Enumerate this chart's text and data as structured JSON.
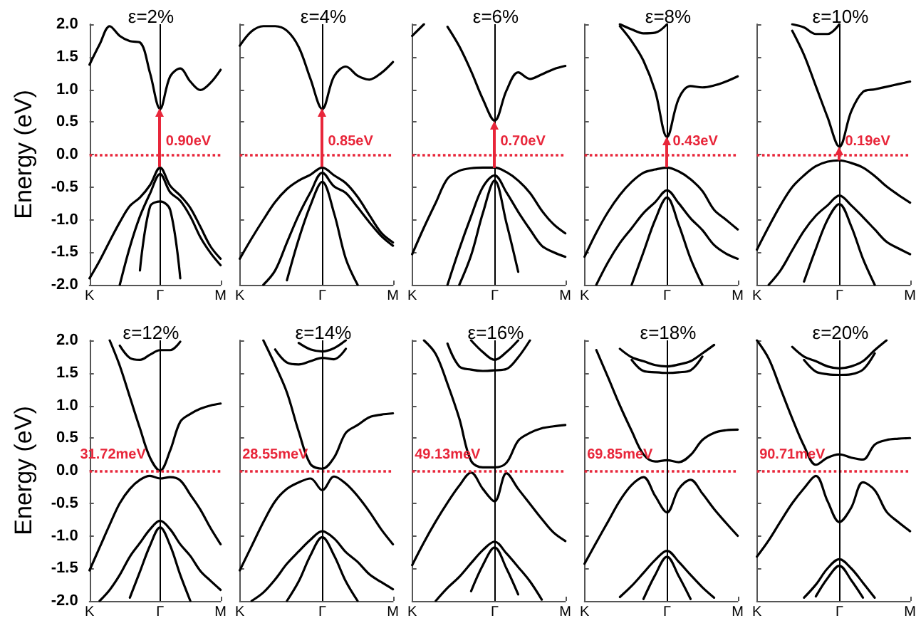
{
  "chart_data": [
    {
      "type": "line",
      "title": "ε=2%",
      "ylabel": "Energy (eV)",
      "categories": [
        "K",
        null,
        null,
        null,
        null,
        null,
        null,
        "Γ",
        null,
        null,
        null,
        null,
        null,
        "M"
      ],
      "ylim": [
        -2,
        2
      ],
      "yticks": [
        {
          "value": -2,
          "label": "-2.0"
        },
        {
          "value": -1.5,
          "label": "-1.5"
        },
        {
          "value": -1,
          "label": "-1.0"
        },
        {
          "value": -0.5,
          "label": "-0.5"
        },
        {
          "value": 0,
          "label": "0.0"
        },
        {
          "value": 0.5,
          "label": "0.5"
        },
        {
          "value": 1,
          "label": "1.0"
        },
        {
          "value": 1.5,
          "label": "1.5"
        },
        {
          "value": 2,
          "label": "2.0"
        }
      ],
      "grid": false,
      "ref_lines": [
        {
          "axis": "y",
          "value": 0,
          "color": "#e8263a",
          "line_style": "dotted"
        },
        {
          "axis": "x",
          "value": "Γ",
          "color": "#000000",
          "line_style": "solid"
        }
      ],
      "annotations": [
        {
          "text": "0.90eV",
          "x": "Γ",
          "y": 0.2
        }
      ],
      "series": [
        {
          "color": "#000000",
          "values": [
            1.38,
            1.69,
            1.97,
            1.82,
            1.74,
            1.72,
            1.25,
            0.7,
            1.2,
            1.32,
            1.12,
            0.99,
            1.1,
            1.3
          ]
        },
        {
          "color": "#000000",
          "values": [
            -1.9,
            -1.63,
            -1.33,
            -1.04,
            -0.79,
            -0.66,
            -0.47,
            -0.2,
            -0.48,
            -0.63,
            -0.82,
            -1.11,
            -1.41,
            -1.6
          ]
        },
        {
          "color": "#000000",
          "values": [
            null,
            null,
            null,
            -2,
            -1.42,
            -0.95,
            -0.6,
            -0.3,
            -0.58,
            -0.71,
            -0.95,
            -1.27,
            -1.51,
            -1.7
          ]
        },
        {
          "color": "#000000",
          "values": [
            null,
            null,
            null,
            null,
            null,
            -1.78,
            -0.8,
            -0.72,
            -0.85,
            -1.9,
            null,
            null,
            null,
            null
          ]
        }
      ]
    },
    {
      "type": "line",
      "title": "ε=4%",
      "categories": [
        "K",
        null,
        null,
        null,
        null,
        null,
        null,
        "Γ",
        null,
        null,
        null,
        null,
        null,
        "M"
      ],
      "ylim": [
        -2,
        2
      ],
      "tick_labels": "x",
      "yticks": [
        {
          "value": -2,
          "label": null
        },
        {
          "value": -1.5,
          "label": null
        },
        {
          "value": -1,
          "label": null
        },
        {
          "value": -0.5,
          "label": null
        },
        {
          "value": 0,
          "label": null
        },
        {
          "value": 0.5,
          "label": null
        },
        {
          "value": 1,
          "label": null
        },
        {
          "value": 1.5,
          "label": null
        },
        {
          "value": 2,
          "label": null
        }
      ],
      "grid": false,
      "ref_lines": [
        {
          "axis": "y",
          "value": 0,
          "color": "#e8263a",
          "line_style": "dotted"
        },
        {
          "axis": "x",
          "value": "Γ",
          "color": "#000000",
          "line_style": "solid"
        }
      ],
      "annotations": [
        {
          "text": "0.85eV",
          "x": "Γ",
          "y": 0.2
        }
      ],
      "series": [
        {
          "color": "#000000",
          "values": [
            1.67,
            1.89,
            1.97,
            1.97,
            1.9,
            1.65,
            1.16,
            0.7,
            1.2,
            1.35,
            1.21,
            1.15,
            1.25,
            1.42
          ]
        },
        {
          "color": "#000000",
          "values": [
            -1.6,
            -1.29,
            -1.0,
            -0.73,
            -0.53,
            -0.4,
            -0.31,
            -0.2,
            -0.32,
            -0.44,
            -0.65,
            -0.93,
            -1.2,
            -1.35
          ]
        },
        {
          "color": "#000000",
          "values": [
            null,
            null,
            -2,
            -1.78,
            -1.35,
            -0.93,
            -0.58,
            -0.28,
            -0.49,
            -0.59,
            -0.81,
            -1.04,
            -1.25,
            -1.4
          ]
        },
        {
          "color": "#000000",
          "values": [
            null,
            null,
            null,
            null,
            -1.93,
            -1.3,
            -0.78,
            -0.42,
            -0.9,
            -1.6,
            -2,
            null,
            null,
            null
          ]
        }
      ]
    },
    {
      "type": "line",
      "title": "ε=6%",
      "categories": [
        "K",
        null,
        null,
        null,
        null,
        null,
        null,
        "Γ",
        null,
        null,
        null,
        null,
        null,
        "M"
      ],
      "ylim": [
        -2,
        2
      ],
      "tick_labels": "x",
      "yticks": [
        {
          "value": -2,
          "label": null
        },
        {
          "value": -1.5,
          "label": null
        },
        {
          "value": -1,
          "label": null
        },
        {
          "value": -0.5,
          "label": null
        },
        {
          "value": 0,
          "label": null
        },
        {
          "value": 0.5,
          "label": null
        },
        {
          "value": 1,
          "label": null
        },
        {
          "value": 1.5,
          "label": null
        },
        {
          "value": 2,
          "label": null
        }
      ],
      "grid": false,
      "ref_lines": [
        {
          "axis": "y",
          "value": 0,
          "color": "#e8263a",
          "line_style": "dotted"
        },
        {
          "axis": "x",
          "value": "Γ",
          "color": "#000000",
          "line_style": "solid"
        }
      ],
      "annotations": [
        {
          "text": "0.70eV",
          "x": "Γ",
          "y": 0.2
        }
      ],
      "series": [
        {
          "color": "#000000",
          "values": [
            1.82,
            2.0,
            null,
            null,
            null,
            null,
            null,
            null,
            null,
            null,
            null,
            null,
            null,
            null
          ]
        },
        {
          "color": "#000000",
          "values": [
            null,
            null,
            null,
            1.96,
            1.66,
            1.28,
            0.85,
            0.52,
            0.98,
            1.26,
            1.16,
            1.23,
            1.31,
            1.36
          ]
        },
        {
          "color": "#000000",
          "values": [
            -1.53,
            -1.12,
            -0.74,
            -0.37,
            -0.25,
            -0.21,
            -0.2,
            -0.2,
            -0.27,
            -0.4,
            -0.59,
            -0.86,
            -1.07,
            -1.21
          ]
        },
        {
          "color": "#000000",
          "values": [
            null,
            null,
            null,
            -2,
            -1.45,
            -0.95,
            -0.5,
            -0.32,
            -0.58,
            -0.88,
            -1.15,
            -1.4,
            -1.5,
            -1.57
          ]
        },
        {
          "color": "#000000",
          "values": [
            null,
            null,
            null,
            null,
            -2,
            -1.55,
            -0.9,
            -0.4,
            -1.05,
            -1.8,
            null,
            null,
            null,
            null
          ]
        }
      ]
    },
    {
      "type": "line",
      "title": "ε=8%",
      "categories": [
        "K",
        null,
        null,
        null,
        null,
        null,
        null,
        "Γ",
        null,
        null,
        null,
        null,
        null,
        "M"
      ],
      "ylim": [
        -2,
        2
      ],
      "tick_labels": "x",
      "yticks": [
        {
          "value": -2,
          "label": null
        },
        {
          "value": -1.5,
          "label": null
        },
        {
          "value": -1,
          "label": null
        },
        {
          "value": -0.5,
          "label": null
        },
        {
          "value": 0,
          "label": null
        },
        {
          "value": 0.5,
          "label": null
        },
        {
          "value": 1,
          "label": null
        },
        {
          "value": 1.5,
          "label": null
        },
        {
          "value": 2,
          "label": null
        }
      ],
      "grid": false,
      "ref_lines": [
        {
          "axis": "y",
          "value": 0,
          "color": "#e8263a",
          "line_style": "dotted"
        },
        {
          "axis": "x",
          "value": "Γ",
          "color": "#000000",
          "line_style": "solid"
        }
      ],
      "annotations": [
        {
          "text": "0.43eV",
          "x": "Γ",
          "y": 0.2
        }
      ],
      "series": [
        {
          "color": "#000000",
          "values": [
            null,
            null,
            null,
            1.97,
            1.74,
            1.44,
            0.97,
            0.27,
            0.86,
            1.05,
            1.03,
            1.06,
            1.12,
            1.2
          ]
        },
        {
          "color": "#000000",
          "values": [
            null,
            null,
            null,
            2.0,
            1.92,
            1.86,
            1.87,
            2.0,
            null,
            null,
            null,
            null,
            null,
            null
          ]
        },
        {
          "color": "#000000",
          "values": [
            -1.57,
            -1.2,
            -0.88,
            -0.62,
            -0.42,
            -0.28,
            -0.23,
            -0.2,
            -0.26,
            -0.38,
            -0.56,
            -0.85,
            -1.0,
            -1.15
          ]
        },
        {
          "color": "#000000",
          "values": [
            null,
            -2,
            -1.65,
            -1.36,
            -1.13,
            -0.9,
            -0.73,
            -0.55,
            -0.75,
            -0.98,
            -1.16,
            -1.39,
            -1.52,
            -1.6
          ]
        },
        {
          "color": "#000000",
          "values": [
            null,
            null,
            null,
            null,
            -2,
            -1.5,
            -1.0,
            -0.66,
            -1.08,
            -1.6,
            -2,
            null,
            null,
            null
          ]
        }
      ]
    },
    {
      "type": "line",
      "title": "ε=10%",
      "categories": [
        "K",
        null,
        null,
        null,
        null,
        null,
        null,
        "Γ",
        null,
        null,
        null,
        null,
        null,
        "M"
      ],
      "ylim": [
        -2,
        2
      ],
      "tick_labels": "x",
      "yticks": [
        {
          "value": -2,
          "label": null
        },
        {
          "value": -1.5,
          "label": null
        },
        {
          "value": -1,
          "label": null
        },
        {
          "value": -0.5,
          "label": null
        },
        {
          "value": 0,
          "label": null
        },
        {
          "value": 0.5,
          "label": null
        },
        {
          "value": 1,
          "label": null
        },
        {
          "value": 1.5,
          "label": null
        },
        {
          "value": 2,
          "label": null
        }
      ],
      "grid": false,
      "ref_lines": [
        {
          "axis": "y",
          "value": 0,
          "color": "#e8263a",
          "line_style": "dotted"
        },
        {
          "axis": "x",
          "value": "Γ",
          "color": "#000000",
          "line_style": "solid"
        }
      ],
      "annotations": [
        {
          "text": "0.19eV",
          "x": "Γ",
          "y": 0.2
        }
      ],
      "series": [
        {
          "color": "#000000",
          "values": [
            null,
            null,
            null,
            1.9,
            1.53,
            1.05,
            0.57,
            0.12,
            0.66,
            0.96,
            1.0,
            1.04,
            1.08,
            1.12
          ]
        },
        {
          "color": "#000000",
          "values": [
            null,
            null,
            null,
            2.0,
            1.95,
            1.85,
            1.85,
            2.0,
            null,
            null,
            null,
            null,
            null,
            null
          ]
        },
        {
          "color": "#000000",
          "values": [
            -1.46,
            -1.11,
            -0.78,
            -0.5,
            -0.32,
            -0.18,
            -0.11,
            -0.09,
            -0.13,
            -0.2,
            -0.33,
            -0.49,
            -0.62,
            -0.74
          ]
        },
        {
          "color": "#000000",
          "values": [
            null,
            -2,
            -1.78,
            -1.47,
            -1.17,
            -0.94,
            -0.78,
            -0.63,
            -0.78,
            -0.96,
            -1.15,
            -1.34,
            -1.44,
            -1.53
          ]
        },
        {
          "color": "#000000",
          "values": [
            null,
            null,
            null,
            null,
            -1.95,
            -1.45,
            -1.0,
            -0.76,
            -1.1,
            -1.6,
            -2,
            null,
            null,
            null
          ]
        }
      ]
    },
    {
      "type": "line",
      "title": "ε=12%",
      "ylabel": "Energy (eV)",
      "categories": [
        "K",
        null,
        null,
        null,
        null,
        null,
        null,
        "Γ",
        null,
        null,
        null,
        null,
        null,
        "M"
      ],
      "ylim": [
        -2,
        2
      ],
      "yticks": [
        {
          "value": -2,
          "label": "-2.0"
        },
        {
          "value": -1.5,
          "label": "-1.5"
        },
        {
          "value": -1,
          "label": "-1.0"
        },
        {
          "value": -0.5,
          "label": "-0.5"
        },
        {
          "value": 0,
          "label": "0.0"
        },
        {
          "value": 0.5,
          "label": "0.5"
        },
        {
          "value": 1,
          "label": "1.0"
        },
        {
          "value": 1.5,
          "label": "1.5"
        },
        {
          "value": 2,
          "label": "2.0"
        }
      ],
      "grid": false,
      "ref_lines": [
        {
          "axis": "y",
          "value": 0,
          "color": "#e8263a",
          "line_style": "dotted"
        },
        {
          "axis": "x",
          "value": "Γ",
          "color": "#000000",
          "line_style": "solid"
        }
      ],
      "annotations": [
        "31.72meV"
      ],
      "series": [
        {
          "color": "#000000",
          "values": [
            null,
            null,
            2.0,
            1.61,
            1.13,
            0.65,
            0.2,
            0.0,
            0.31,
            0.75,
            0.87,
            0.95,
            1.0,
            1.03
          ]
        },
        {
          "color": "#000000",
          "values": [
            null,
            null,
            null,
            1.92,
            1.73,
            1.7,
            1.78,
            1.85,
            1.85,
            1.98,
            null,
            null,
            null,
            null
          ]
        },
        {
          "color": "#000000",
          "values": [
            -1.53,
            -1.18,
            -0.83,
            -0.5,
            -0.28,
            -0.14,
            -0.08,
            -0.12,
            -0.1,
            -0.15,
            -0.37,
            -0.6,
            -0.88,
            -1.13
          ]
        },
        {
          "color": "#000000",
          "values": [
            null,
            -2,
            -1.83,
            -1.6,
            -1.32,
            -1.11,
            -0.9,
            -0.77,
            -0.9,
            -1.13,
            -1.31,
            -1.54,
            -1.69,
            -1.83
          ]
        },
        {
          "color": "#000000",
          "values": [
            null,
            null,
            null,
            null,
            -1.95,
            -1.55,
            -1.15,
            -0.87,
            -1.15,
            -1.6,
            -2,
            null,
            null,
            null
          ]
        }
      ]
    },
    {
      "type": "line",
      "title": "ε=14%",
      "categories": [
        "K",
        null,
        null,
        null,
        null,
        null,
        null,
        "Γ",
        null,
        null,
        null,
        null,
        null,
        "M"
      ],
      "ylim": [
        -2,
        2
      ],
      "tick_labels": "x",
      "yticks": [
        {
          "value": -2,
          "label": null
        },
        {
          "value": -1.5,
          "label": null
        },
        {
          "value": -1,
          "label": null
        },
        {
          "value": -0.5,
          "label": null
        },
        {
          "value": 0,
          "label": null
        },
        {
          "value": 0.5,
          "label": null
        },
        {
          "value": 1,
          "label": null
        },
        {
          "value": 1.5,
          "label": null
        },
        {
          "value": 2,
          "label": null
        }
      ],
      "grid": false,
      "ref_lines": [
        {
          "axis": "y",
          "value": 0,
          "color": "#e8263a",
          "line_style": "dotted"
        },
        {
          "axis": "x",
          "value": "Γ",
          "color": "#000000",
          "line_style": "solid"
        }
      ],
      "annotations": [
        "28.55meV"
      ],
      "series": [
        {
          "color": "#000000",
          "values": [
            null,
            null,
            2.0,
            1.62,
            1.2,
            0.6,
            0.1,
            0.03,
            0.2,
            0.58,
            0.7,
            0.82,
            0.86,
            0.88
          ]
        },
        {
          "color": "#000000",
          "values": [
            null,
            null,
            null,
            1.86,
            1.66,
            1.63,
            1.68,
            1.73,
            1.71,
            1.87,
            null,
            null,
            null,
            null
          ]
        },
        {
          "color": "#000000",
          "values": [
            null,
            null,
            null,
            null,
            null,
            1.96,
            1.86,
            1.83,
            1.88,
            2.0,
            null,
            null,
            null,
            null
          ]
        },
        {
          "color": "#000000",
          "values": [
            -1.53,
            -1.16,
            -0.79,
            -0.47,
            -0.28,
            -0.18,
            -0.12,
            -0.3,
            -0.09,
            -0.2,
            -0.39,
            -0.63,
            -0.9,
            -1.13
          ]
        },
        {
          "color": "#000000",
          "values": [
            null,
            -2,
            -1.87,
            -1.67,
            -1.43,
            -1.24,
            -1.06,
            -0.93,
            -1.04,
            -1.25,
            -1.4,
            -1.59,
            -1.71,
            -1.82
          ]
        },
        {
          "color": "#000000",
          "values": [
            null,
            null,
            null,
            null,
            -2,
            -1.7,
            -1.3,
            -1.02,
            -1.3,
            -1.7,
            -2,
            null,
            null,
            null
          ]
        }
      ]
    },
    {
      "type": "line",
      "title": "ε=16%",
      "categories": [
        "K",
        null,
        null,
        null,
        null,
        null,
        null,
        "Γ",
        null,
        null,
        null,
        null,
        null,
        "M"
      ],
      "ylim": [
        -2,
        2
      ],
      "tick_labels": "x",
      "yticks": [
        {
          "value": -2,
          "label": null
        },
        {
          "value": -1.5,
          "label": null
        },
        {
          "value": -1,
          "label": null
        },
        {
          "value": -0.5,
          "label": null
        },
        {
          "value": 0,
          "label": null
        },
        {
          "value": 0.5,
          "label": null
        },
        {
          "value": 1,
          "label": null
        },
        {
          "value": 1.5,
          "label": null
        },
        {
          "value": 2,
          "label": null
        }
      ],
      "grid": false,
      "ref_lines": [
        {
          "axis": "y",
          "value": 0,
          "color": "#e8263a",
          "line_style": "dotted"
        },
        {
          "axis": "x",
          "value": "Γ",
          "color": "#000000",
          "line_style": "solid"
        }
      ],
      "annotations": [
        "49.13meV"
      ],
      "series": [
        {
          "color": "#000000",
          "values": [
            null,
            2.0,
            1.79,
            1.33,
            0.8,
            0.15,
            0.05,
            0.05,
            0.12,
            0.46,
            0.58,
            0.65,
            0.68,
            0.7
          ]
        },
        {
          "color": "#000000",
          "values": [
            null,
            null,
            null,
            null,
            null,
            2.0,
            1.82,
            1.7,
            1.82,
            2.0,
            null,
            null,
            null,
            null
          ]
        },
        {
          "color": "#000000",
          "values": [
            null,
            null,
            null,
            1.95,
            1.6,
            1.55,
            1.53,
            1.54,
            1.56,
            1.74,
            2.0,
            null,
            null,
            null
          ]
        },
        {
          "color": "#000000",
          "values": [
            -1.45,
            -1.1,
            -0.78,
            -0.49,
            -0.23,
            -0.03,
            -0.28,
            -0.47,
            -0.04,
            -0.28,
            -0.51,
            -0.74,
            -0.95,
            -1.08
          ]
        },
        {
          "color": "#000000",
          "values": [
            null,
            null,
            -2,
            -1.8,
            -1.63,
            -1.42,
            -1.22,
            -1.09,
            -1.27,
            -1.48,
            -1.7,
            -1.98,
            null,
            null
          ]
        },
        {
          "color": "#000000",
          "values": [
            null,
            null,
            null,
            null,
            null,
            -1.85,
            -1.45,
            -1.18,
            -1.5,
            -1.9,
            null,
            null,
            null,
            null
          ]
        }
      ]
    },
    {
      "type": "line",
      "title": "ε=18%",
      "categories": [
        "K",
        null,
        null,
        null,
        null,
        null,
        null,
        "Γ",
        null,
        null,
        null,
        null,
        null,
        "M"
      ],
      "ylim": [
        -2,
        2
      ],
      "tick_labels": "x",
      "yticks": [
        {
          "value": -2,
          "label": null
        },
        {
          "value": -1.5,
          "label": null
        },
        {
          "value": -1,
          "label": null
        },
        {
          "value": -0.5,
          "label": null
        },
        {
          "value": 0,
          "label": null
        },
        {
          "value": 0.5,
          "label": null
        },
        {
          "value": 1,
          "label": null
        },
        {
          "value": 1.5,
          "label": null
        },
        {
          "value": 2,
          "label": null
        }
      ],
      "grid": false,
      "ref_lines": [
        {
          "axis": "y",
          "value": 0,
          "color": "#e8263a",
          "line_style": "dotted"
        },
        {
          "axis": "x",
          "value": "Γ",
          "color": "#000000",
          "line_style": "solid"
        }
      ],
      "annotations": [
        "69.85meV"
      ],
      "series": [
        {
          "color": "#000000",
          "values": [
            null,
            1.85,
            1.43,
            1.0,
            0.61,
            0.25,
            0.14,
            0.16,
            0.13,
            0.24,
            0.47,
            0.58,
            0.62,
            0.63
          ]
        },
        {
          "color": "#000000",
          "values": [
            null,
            null,
            null,
            1.87,
            1.74,
            1.68,
            1.62,
            1.6,
            1.63,
            1.68,
            1.8,
            1.93,
            null,
            null
          ]
        },
        {
          "color": "#000000",
          "values": [
            null,
            null,
            null,
            null,
            1.7,
            1.53,
            1.51,
            1.5,
            1.51,
            1.54,
            1.75,
            null,
            null,
            null
          ]
        },
        {
          "color": "#000000",
          "values": [
            -1.43,
            -1.1,
            -0.78,
            -0.46,
            -0.22,
            -0.1,
            -0.39,
            -0.64,
            -0.28,
            -0.14,
            -0.35,
            -0.59,
            -0.8,
            -1.0
          ]
        },
        {
          "color": "#000000",
          "values": [
            null,
            null,
            null,
            -1.94,
            -1.77,
            -1.57,
            -1.37,
            -1.23,
            -1.4,
            -1.6,
            -1.79,
            -1.95,
            null,
            null
          ]
        },
        {
          "color": "#000000",
          "values": [
            null,
            null,
            null,
            null,
            null,
            -1.97,
            -1.6,
            -1.32,
            -1.62,
            -1.97,
            null,
            null,
            null,
            null
          ]
        }
      ]
    },
    {
      "type": "line",
      "title": "ε=20%",
      "categories": [
        "K",
        null,
        null,
        null,
        null,
        null,
        null,
        "Γ",
        null,
        null,
        null,
        null,
        null,
        "M"
      ],
      "ylim": [
        -2,
        2
      ],
      "tick_labels": "x",
      "yticks": [
        {
          "value": -2,
          "label": null
        },
        {
          "value": -1.5,
          "label": null
        },
        {
          "value": -1,
          "label": null
        },
        {
          "value": -0.5,
          "label": null
        },
        {
          "value": 0,
          "label": null
        },
        {
          "value": 0.5,
          "label": null
        },
        {
          "value": 1,
          "label": null
        },
        {
          "value": 1.5,
          "label": null
        },
        {
          "value": 2,
          "label": null
        }
      ],
      "grid": false,
      "ref_lines": [
        {
          "axis": "y",
          "value": 0,
          "color": "#e8263a",
          "line_style": "dotted"
        },
        {
          "axis": "x",
          "value": "Γ",
          "color": "#000000",
          "line_style": "solid"
        }
      ],
      "annotations": [
        "90.71meV"
      ],
      "series": [
        {
          "color": "#000000",
          "values": [
            2.0,
            1.72,
            1.26,
            0.8,
            0.38,
            0.09,
            0.2,
            0.25,
            0.2,
            0.17,
            0.4,
            0.47,
            0.49,
            0.5
          ]
        },
        {
          "color": "#000000",
          "values": [
            null,
            null,
            null,
            1.9,
            1.75,
            1.68,
            1.6,
            1.57,
            1.6,
            1.68,
            1.85,
            2.0,
            null,
            null
          ]
        },
        {
          "color": "#000000",
          "values": [
            null,
            null,
            null,
            null,
            1.7,
            1.52,
            1.48,
            1.47,
            1.48,
            1.55,
            1.8,
            null,
            null,
            null
          ]
        },
        {
          "color": "#000000",
          "values": [
            -1.32,
            -1.07,
            -0.78,
            -0.5,
            -0.27,
            -0.08,
            -0.47,
            -0.79,
            -0.57,
            -0.18,
            -0.3,
            -0.63,
            -0.79,
            -0.93
          ]
        },
        {
          "color": "#000000",
          "values": [
            null,
            null,
            null,
            null,
            -1.95,
            -1.75,
            -1.5,
            -1.36,
            -1.5,
            -1.72,
            -1.95,
            null,
            null,
            null
          ]
        },
        {
          "color": "#000000",
          "values": [
            null,
            null,
            null,
            null,
            null,
            -1.93,
            -1.65,
            -1.46,
            -1.68,
            -1.95,
            null,
            null,
            null,
            null
          ]
        }
      ]
    }
  ]
}
